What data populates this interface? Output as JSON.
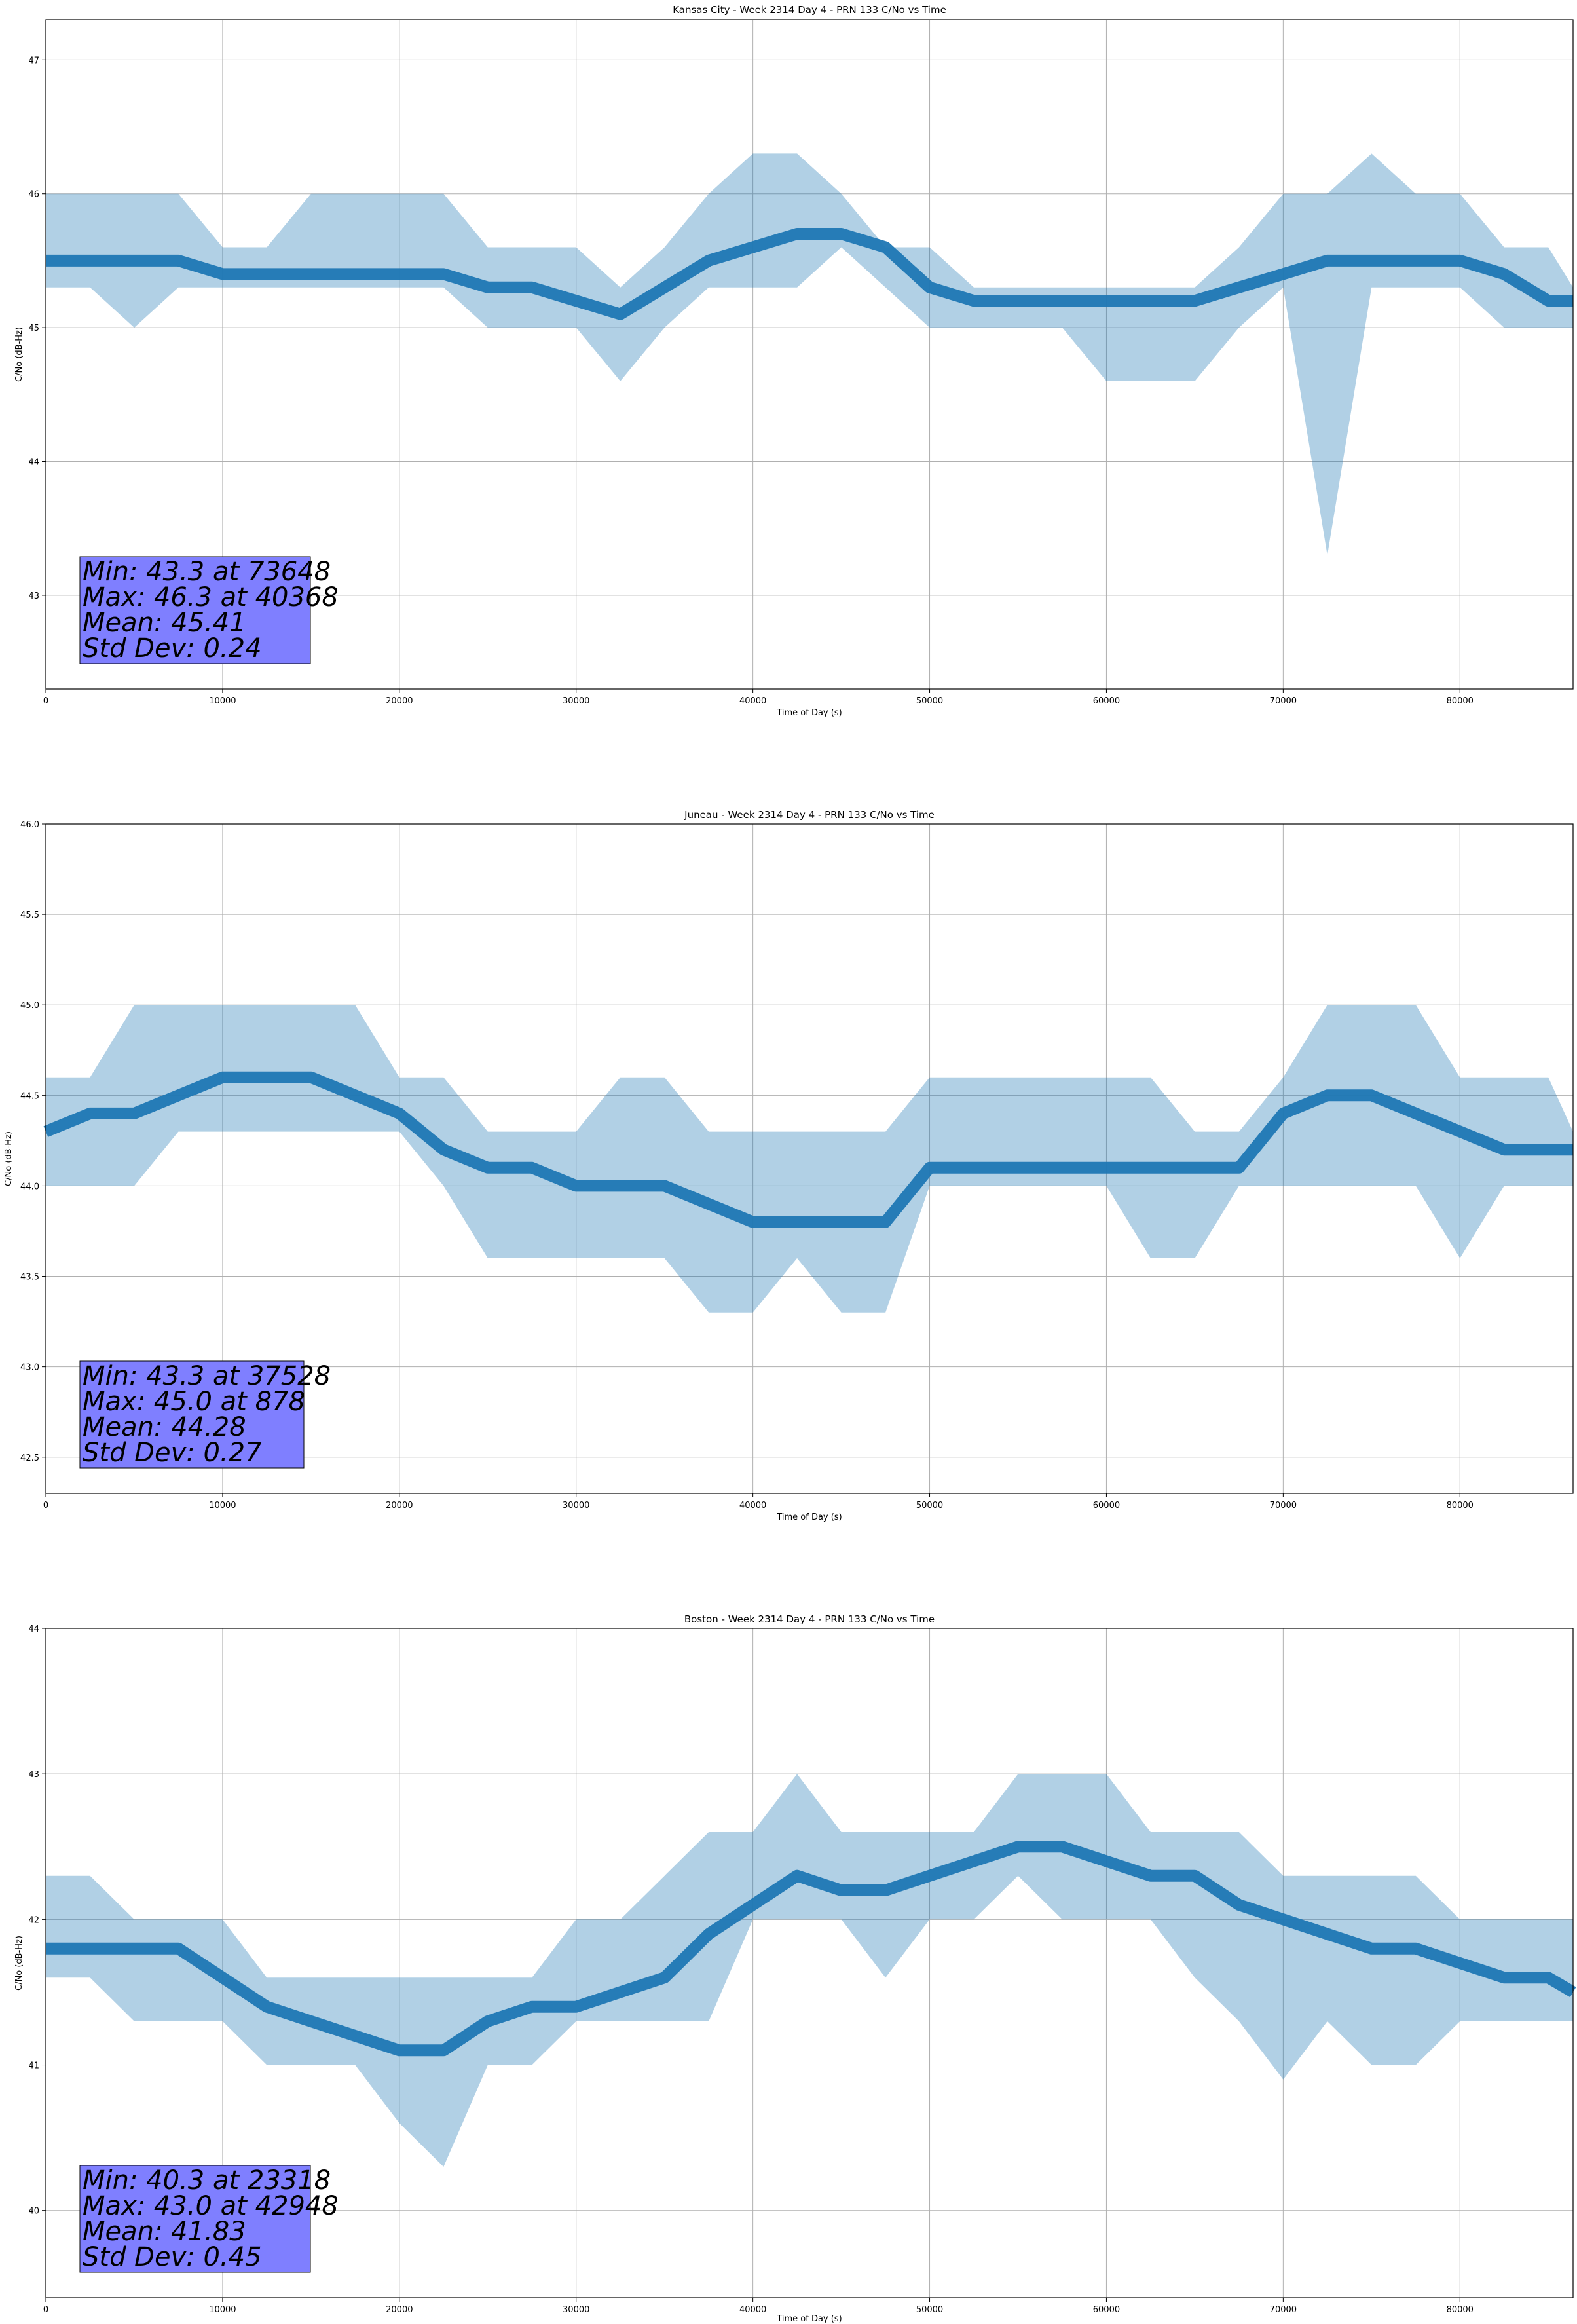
{
  "colors": {
    "series": "#1f77b4",
    "stats_box": "#7f7fff",
    "grid": "#b0b0b0",
    "axes": "#000000"
  },
  "chart_data": [
    {
      "type": "line",
      "title": "Kansas City - Week 2314 Day 4 - PRN 133 C/No vs Time",
      "xlabel": "Time of Day (s)",
      "ylabel": "C/No (dB-Hz)",
      "xlim": [
        0,
        86400
      ],
      "ylim": [
        42.3,
        47.3
      ],
      "xticks": [
        0,
        10000,
        20000,
        30000,
        40000,
        50000,
        60000,
        70000,
        80000
      ],
      "xtick_labels": [
        "0",
        "10000",
        "20000",
        "30000",
        "40000",
        "50000",
        "60000",
        "70000",
        "80000"
      ],
      "yticks": [
        43,
        44,
        45,
        46,
        47
      ],
      "ytick_labels": [
        "43",
        "44",
        "45",
        "46",
        "47"
      ],
      "grid": true,
      "series": [
        {
          "x": [
            0,
            2500,
            5000,
            7500,
            10000,
            12500,
            15000,
            17500,
            20000,
            22500,
            25000,
            27500,
            30000,
            32500,
            35000,
            37500,
            40000,
            42500,
            45000,
            47500,
            50000,
            52500,
            55000,
            57500,
            60000,
            62500,
            65000,
            67500,
            70000,
            72500,
            75000,
            77500,
            80000,
            82500,
            85000,
            86400
          ],
          "y": [
            45.5,
            45.5,
            45.5,
            45.5,
            45.4,
            45.4,
            45.4,
            45.4,
            45.4,
            45.4,
            45.3,
            45.3,
            45.2,
            45.1,
            45.3,
            45.5,
            45.6,
            45.7,
            45.7,
            45.6,
            45.3,
            45.2,
            45.2,
            45.2,
            45.2,
            45.2,
            45.2,
            45.3,
            45.4,
            45.5,
            45.5,
            45.5,
            45.5,
            45.4,
            45.2,
            45.2
          ],
          "upper": [
            46.0,
            46.0,
            46.0,
            46.0,
            45.6,
            45.6,
            46.0,
            46.0,
            46.0,
            46.0,
            45.6,
            45.6,
            45.6,
            45.3,
            45.6,
            46.0,
            46.3,
            46.3,
            46.0,
            45.6,
            45.6,
            45.3,
            45.3,
            45.3,
            45.3,
            45.3,
            45.3,
            45.6,
            46.0,
            46.0,
            46.3,
            46.0,
            46.0,
            45.6,
            45.6,
            45.3
          ],
          "lower": [
            45.3,
            45.3,
            45.0,
            45.3,
            45.3,
            45.3,
            45.3,
            45.3,
            45.3,
            45.3,
            45.0,
            45.0,
            45.0,
            44.6,
            45.0,
            45.3,
            45.3,
            45.3,
            45.6,
            45.3,
            45.0,
            45.0,
            45.0,
            45.0,
            44.6,
            44.6,
            44.6,
            45.0,
            45.3,
            43.3,
            45.3,
            45.3,
            45.3,
            45.0,
            45.0,
            45.0
          ]
        }
      ]
    },
    {
      "type": "line",
      "title": "Juneau - Week 2314 Day 4 - PRN 133 C/No vs Time",
      "xlabel": "Time of Day (s)",
      "ylabel": "C/No (dB-Hz)",
      "xlim": [
        0,
        86400
      ],
      "ylim": [
        42.3,
        46.0
      ],
      "xticks": [
        0,
        10000,
        20000,
        30000,
        40000,
        50000,
        60000,
        70000,
        80000
      ],
      "xtick_labels": [
        "0",
        "10000",
        "20000",
        "30000",
        "40000",
        "50000",
        "60000",
        "70000",
        "80000"
      ],
      "yticks": [
        42.5,
        43.0,
        43.5,
        44.0,
        44.5,
        45.0,
        45.5,
        46.0
      ],
      "ytick_labels": [
        "42.5",
        "43.0",
        "43.5",
        "44.0",
        "44.5",
        "45.0",
        "45.5",
        "46.0"
      ],
      "grid": true,
      "series": [
        {
          "x": [
            0,
            2500,
            5000,
            7500,
            10000,
            12500,
            15000,
            17500,
            20000,
            22500,
            25000,
            27500,
            30000,
            32500,
            35000,
            37500,
            40000,
            42500,
            45000,
            47500,
            50000,
            52500,
            55000,
            57500,
            60000,
            62500,
            65000,
            67500,
            70000,
            72500,
            75000,
            77500,
            80000,
            82500,
            85000,
            86400
          ],
          "y": [
            44.3,
            44.4,
            44.4,
            44.5,
            44.6,
            44.6,
            44.6,
            44.5,
            44.4,
            44.2,
            44.1,
            44.1,
            44.0,
            44.0,
            44.0,
            43.9,
            43.8,
            43.8,
            43.8,
            43.8,
            44.1,
            44.1,
            44.1,
            44.1,
            44.1,
            44.1,
            44.1,
            44.1,
            44.4,
            44.5,
            44.5,
            44.4,
            44.3,
            44.2,
            44.2,
            44.2
          ],
          "upper": [
            44.6,
            44.6,
            45.0,
            45.0,
            45.0,
            45.0,
            45.0,
            45.0,
            44.6,
            44.6,
            44.3,
            44.3,
            44.3,
            44.6,
            44.6,
            44.3,
            44.3,
            44.3,
            44.3,
            44.3,
            44.6,
            44.6,
            44.6,
            44.6,
            44.6,
            44.6,
            44.3,
            44.3,
            44.6,
            45.0,
            45.0,
            45.0,
            44.6,
            44.6,
            44.6,
            44.3
          ],
          "lower": [
            44.0,
            44.0,
            44.0,
            44.3,
            44.3,
            44.3,
            44.3,
            44.3,
            44.3,
            44.0,
            43.6,
            43.6,
            43.6,
            43.6,
            43.6,
            43.3,
            43.3,
            43.6,
            43.3,
            43.3,
            44.0,
            44.0,
            44.0,
            44.0,
            44.0,
            43.6,
            43.6,
            44.0,
            44.0,
            44.0,
            44.0,
            44.0,
            43.6,
            44.0,
            44.0,
            44.0
          ]
        }
      ]
    },
    {
      "type": "line",
      "title": "Boston - Week 2314 Day 4 - PRN 133 C/No vs Time",
      "xlabel": "Time of Day (s)",
      "ylabel": "C/No (dB-Hz)",
      "xlim": [
        0,
        86400
      ],
      "ylim": [
        39.4,
        44.0
      ],
      "xticks": [
        0,
        10000,
        20000,
        30000,
        40000,
        50000,
        60000,
        70000,
        80000
      ],
      "xtick_labels": [
        "0",
        "10000",
        "20000",
        "30000",
        "40000",
        "50000",
        "60000",
        "70000",
        "80000"
      ],
      "yticks": [
        40,
        41,
        42,
        43,
        44
      ],
      "ytick_labels": [
        "40",
        "41",
        "42",
        "43",
        "44"
      ],
      "grid": true,
      "series": [
        {
          "x": [
            0,
            2500,
            5000,
            7500,
            10000,
            12500,
            15000,
            17500,
            20000,
            22500,
            25000,
            27500,
            30000,
            32500,
            35000,
            37500,
            40000,
            42500,
            45000,
            47500,
            50000,
            52500,
            55000,
            57500,
            60000,
            62500,
            65000,
            67500,
            70000,
            72500,
            75000,
            77500,
            80000,
            82500,
            85000,
            86400
          ],
          "y": [
            41.8,
            41.8,
            41.8,
            41.8,
            41.6,
            41.4,
            41.3,
            41.2,
            41.1,
            41.1,
            41.3,
            41.4,
            41.4,
            41.5,
            41.6,
            41.9,
            42.1,
            42.3,
            42.2,
            42.2,
            42.3,
            42.4,
            42.5,
            42.5,
            42.4,
            42.3,
            42.3,
            42.1,
            42.0,
            41.9,
            41.8,
            41.8,
            41.7,
            41.6,
            41.6,
            41.5
          ],
          "upper": [
            42.3,
            42.3,
            42.0,
            42.0,
            42.0,
            41.6,
            41.6,
            41.6,
            41.6,
            41.6,
            41.6,
            41.6,
            42.0,
            42.0,
            42.3,
            42.6,
            42.6,
            43.0,
            42.6,
            42.6,
            42.6,
            42.6,
            43.0,
            43.0,
            43.0,
            42.6,
            42.6,
            42.6,
            42.3,
            42.3,
            42.3,
            42.3,
            42.0,
            42.0,
            42.0,
            42.0
          ],
          "lower": [
            41.6,
            41.6,
            41.3,
            41.3,
            41.3,
            41.0,
            41.0,
            41.0,
            40.6,
            40.3,
            41.0,
            41.0,
            41.3,
            41.3,
            41.3,
            41.3,
            42.0,
            42.0,
            42.0,
            41.6,
            42.0,
            42.0,
            42.3,
            42.0,
            42.0,
            42.0,
            41.6,
            41.3,
            40.9,
            41.3,
            41.0,
            41.0,
            41.3,
            41.3,
            41.3,
            41.3
          ]
        }
      ]
    }
  ],
  "stats": [
    {
      "min": "Min: 43.3 at 73648",
      "max": "Max: 46.3 at 40368",
      "mean": "Mean: 45.41",
      "std": "Std Dev: 0.24"
    },
    {
      "min": "Min: 43.3 at 37528",
      "max": "Max: 45.0 at 878",
      "mean": "Mean: 44.28",
      "std": "Std Dev: 0.27"
    },
    {
      "min": "Min: 40.3 at 23318",
      "max": "Max: 43.0 at 42948",
      "mean": "Mean: 41.83",
      "std": "Std Dev: 0.45"
    }
  ]
}
